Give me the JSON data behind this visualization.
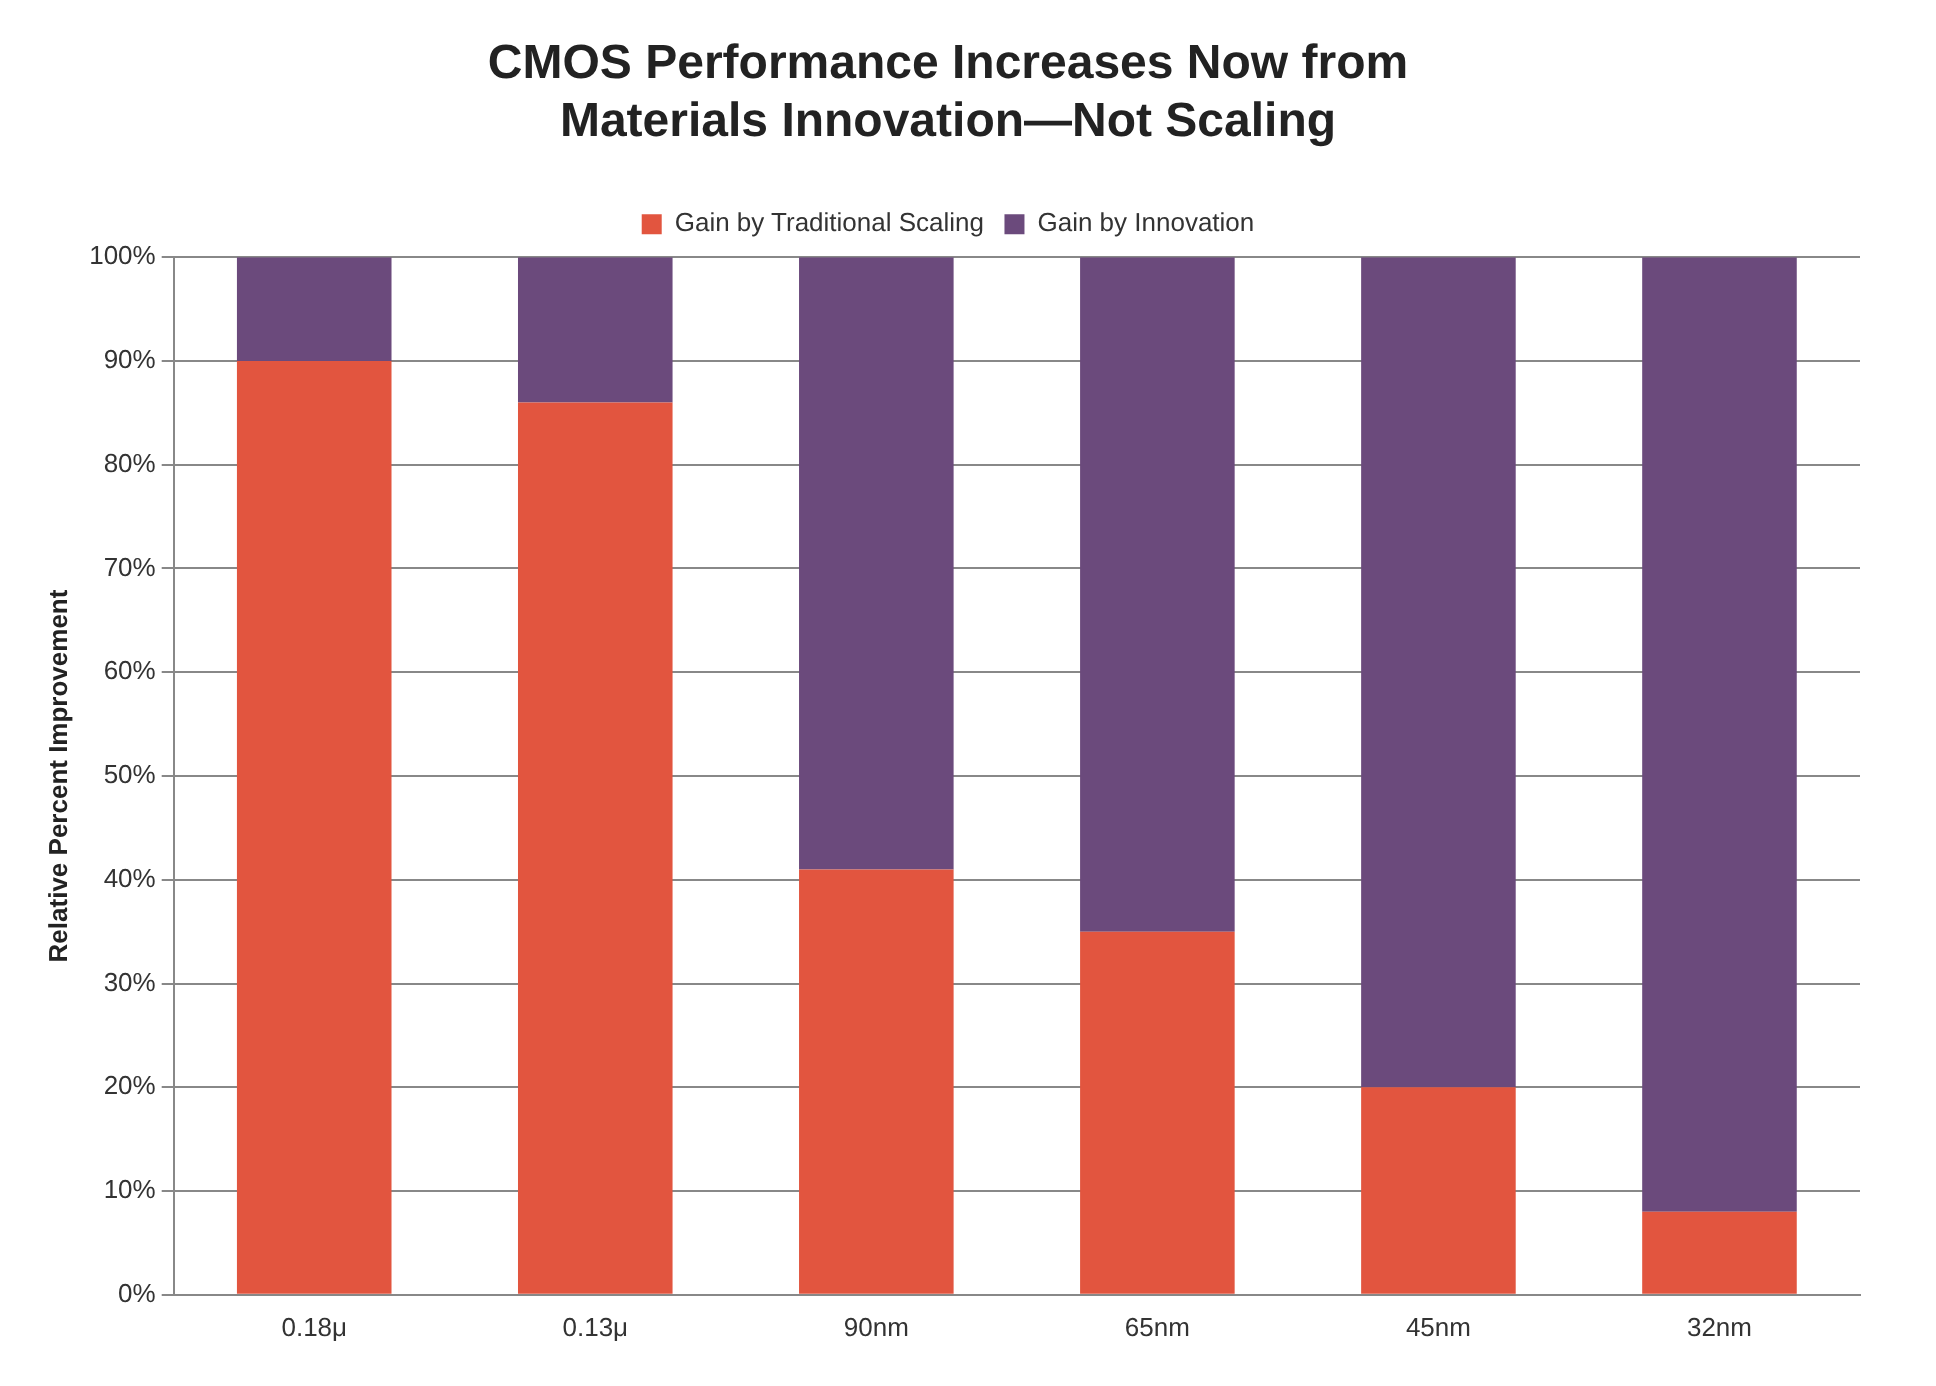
{
  "chart_data": {
    "type": "bar",
    "title": [
      "CMOS Performance Increases Now from",
      "Materials Innovation—Not Scaling"
    ],
    "ylabel": "Relative Percent Improvement",
    "categories": [
      "0.18μ",
      "0.13μ",
      "90nm",
      "65nm",
      "45nm",
      "32nm"
    ],
    "series": [
      {
        "name": "Gain by Traditional Scaling",
        "color": "#e2553f",
        "values": [
          90,
          86,
          41,
          35,
          20,
          8
        ]
      },
      {
        "name": "Gain by Innovation",
        "color": "#6b4a7c",
        "values": [
          10,
          14,
          59,
          65,
          80,
          92
        ]
      }
    ],
    "stacked": true,
    "ylim": [
      0,
      100
    ],
    "yticks": [
      {
        "value": 0,
        "label": "0%"
      },
      {
        "value": 10,
        "label": "10%"
      },
      {
        "value": 20,
        "label": "20%"
      },
      {
        "value": 30,
        "label": "30%"
      },
      {
        "value": 40,
        "label": "40%"
      },
      {
        "value": 50,
        "label": "50%"
      },
      {
        "value": 60,
        "label": "60%"
      },
      {
        "value": 70,
        "label": "70%"
      },
      {
        "value": 80,
        "label": "80%"
      },
      {
        "value": 90,
        "label": "90%"
      },
      {
        "value": 100,
        "label": "100%"
      }
    ],
    "grid": "y",
    "legend": "top"
  }
}
